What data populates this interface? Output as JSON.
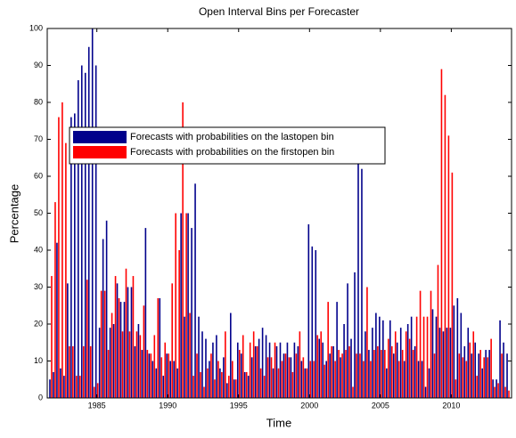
{
  "chart_data": {
    "type": "bar",
    "title": "Open Interval Bins per Forecaster",
    "x_label": "Time",
    "y_label": "Percentage",
    "x": [
      1981.75,
      1982,
      1982.25,
      1982.5,
      1982.75,
      1983,
      1983.25,
      1983.5,
      1983.75,
      1984,
      1984.25,
      1984.5,
      1984.75,
      1985,
      1985.25,
      1985.5,
      1985.75,
      1986,
      1986.25,
      1986.5,
      1986.75,
      1987,
      1987.25,
      1987.5,
      1987.75,
      1988,
      1988.25,
      1988.5,
      1988.75,
      1989,
      1989.25,
      1989.5,
      1989.75,
      1990,
      1990.25,
      1990.5,
      1990.75,
      1991,
      1991.25,
      1991.5,
      1991.75,
      1992,
      1992.25,
      1992.5,
      1992.75,
      1993,
      1993.25,
      1993.5,
      1993.75,
      1994,
      1994.25,
      1994.5,
      1994.75,
      1995,
      1995.25,
      1995.5,
      1995.75,
      1996,
      1996.25,
      1996.5,
      1996.75,
      1997,
      1997.25,
      1997.5,
      1997.75,
      1998,
      1998.25,
      1998.5,
      1998.75,
      1999,
      1999.25,
      1999.5,
      1999.75,
      2000,
      2000.25,
      2000.5,
      2000.75,
      2001,
      2001.25,
      2001.5,
      2001.75,
      2002,
      2002.25,
      2002.5,
      2002.75,
      2003,
      2003.25,
      2003.5,
      2003.75,
      2004,
      2004.25,
      2004.5,
      2004.75,
      2005,
      2005.25,
      2005.5,
      2005.75,
      2006,
      2006.25,
      2006.5,
      2006.75,
      2007,
      2007.25,
      2007.5,
      2007.75,
      2008,
      2008.25,
      2008.5,
      2008.75,
      2009,
      2009.25,
      2009.5,
      2009.75,
      2010,
      2010.25,
      2010.5,
      2010.75,
      2011,
      2011.25,
      2011.5,
      2011.75,
      2012,
      2012.25,
      2012.5,
      2012.75,
      2013,
      2013.25,
      2013.5,
      2013.75,
      2014
    ],
    "series": [
      {
        "name": "Forecasts with probabilities on the lastopen bin",
        "color": "#00008b",
        "values": [
          5,
          7,
          42,
          8,
          6,
          31,
          76,
          77,
          86,
          90,
          88,
          95,
          100,
          90,
          19,
          43,
          48,
          19,
          20,
          31,
          26,
          26,
          30,
          30,
          14,
          20,
          13,
          46,
          12,
          10,
          8,
          27,
          6,
          12,
          10,
          10,
          8,
          50,
          22,
          50,
          46,
          58,
          22,
          18,
          16,
          10,
          15,
          17,
          8,
          11,
          4,
          23,
          5,
          15,
          12,
          7,
          6,
          11,
          14,
          16,
          19,
          17,
          15,
          8,
          14,
          15,
          12,
          15,
          11,
          15,
          14,
          10,
          8,
          47,
          41,
          40,
          16,
          15,
          10,
          12,
          14,
          26,
          11,
          20,
          31,
          16,
          34,
          64,
          62,
          18,
          13,
          19,
          23,
          22,
          21,
          8,
          21,
          12,
          15,
          19,
          10,
          20,
          22,
          14,
          10,
          10,
          3,
          8,
          24,
          22,
          19,
          18,
          19,
          19,
          25,
          27,
          23,
          14,
          19,
          12,
          15,
          12,
          8,
          13,
          13,
          5,
          5,
          21,
          15,
          12
        ]
      },
      {
        "name": "Forecasts with probabilities on the firstopen bin",
        "color": "#ff0000",
        "values": [
          33,
          53,
          76,
          80,
          69,
          14,
          14,
          6,
          6,
          14,
          32,
          14,
          3,
          4,
          29,
          29,
          13,
          23,
          33,
          27,
          18,
          35,
          18,
          33,
          18,
          17,
          25,
          13,
          12,
          17,
          27,
          11,
          15,
          12,
          31,
          50,
          40,
          80,
          50,
          23,
          6,
          12,
          7,
          3,
          8,
          12,
          5,
          10,
          7,
          18,
          6,
          10,
          5,
          13,
          17,
          7,
          15,
          18,
          14,
          8,
          6,
          11,
          11,
          15,
          8,
          10,
          12,
          11,
          7,
          12,
          18,
          11,
          8,
          10,
          10,
          17,
          18,
          9,
          26,
          14,
          10,
          13,
          12,
          13,
          14,
          3,
          12,
          12,
          10,
          30,
          10,
          13,
          14,
          13,
          13,
          16,
          14,
          18,
          10,
          13,
          18,
          16,
          13,
          22,
          29,
          22,
          22,
          29,
          12,
          36,
          89,
          82,
          71,
          61,
          5,
          12,
          11,
          10,
          15,
          18,
          6,
          13,
          11,
          11,
          16,
          3,
          4,
          12,
          3,
          2
        ]
      }
    ],
    "xlim": [
      1981.5,
      2014.25
    ],
    "xticks": [
      1985,
      1990,
      1995,
      2000,
      2005,
      2010
    ],
    "ylim": [
      0,
      100
    ],
    "yticks": [
      0,
      10,
      20,
      30,
      40,
      50,
      60,
      70,
      80,
      90,
      100
    ],
    "legend": "upper left"
  }
}
